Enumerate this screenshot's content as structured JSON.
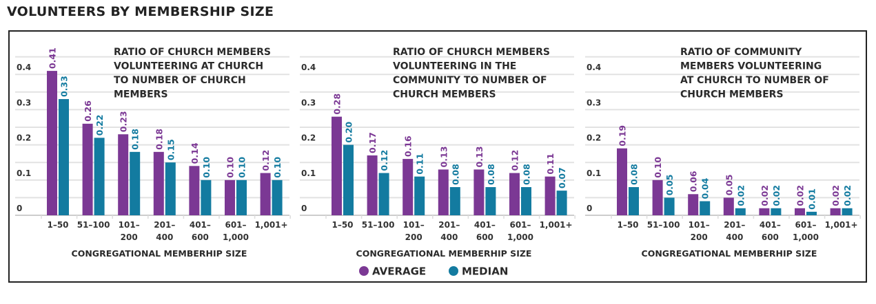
{
  "title": "VOLUNTEERS BY MEMBERSHIP SIZE",
  "colors": {
    "average": "#7b3894",
    "median": "#137ba0"
  },
  "legend": [
    {
      "label": "AVERAGE",
      "color": "#7b3894"
    },
    {
      "label": "MEDIAN",
      "color": "#137ba0"
    }
  ],
  "chart_data": [
    {
      "type": "bar",
      "title_lines": [
        "RATIO OF CHURCH MEMBERS",
        "VOLUNTEERING AT CHURCH",
        "TO NUMBER OF CHURCH",
        "MEMBERS"
      ],
      "xlabel": "CONGREGATIONAL MEMBERHIP SIZE",
      "categories": [
        [
          "1–50"
        ],
        [
          "51–100"
        ],
        [
          "101–",
          "200"
        ],
        [
          "201–",
          "400"
        ],
        [
          "401–",
          "600"
        ],
        [
          "601–",
          "1,000"
        ],
        [
          "1,001+"
        ]
      ],
      "yticks": [
        "0",
        "0.1",
        "0.2",
        "0.3",
        "0.4"
      ],
      "ylim": [
        0,
        0.45
      ],
      "grid": true,
      "series": [
        {
          "name": "AVERAGE",
          "values": [
            0.41,
            0.26,
            0.23,
            0.18,
            0.14,
            0.1,
            0.12
          ],
          "labels": [
            "0.41",
            "0.26",
            "0.23",
            "0.18",
            "0.14",
            "0.10",
            "0.12"
          ]
        },
        {
          "name": "MEDIAN",
          "values": [
            0.33,
            0.22,
            0.18,
            0.15,
            0.1,
            0.1,
            0.1
          ],
          "labels": [
            "0.33",
            "0.22",
            "0.18",
            "0.15",
            "0.10",
            "0.10",
            "0.10"
          ]
        }
      ]
    },
    {
      "type": "bar",
      "title_lines": [
        "RATIO OF CHURCH MEMBERS",
        "VOLUNTEERING IN THE",
        "COMMUNITY TO NUMBER OF",
        "CHURCH MEMBERS"
      ],
      "xlabel": "CONGREGATIONAL MEMBERHIP SIZE",
      "categories": [
        [
          "1–50"
        ],
        [
          "51–100"
        ],
        [
          "101–",
          "200"
        ],
        [
          "201–",
          "400"
        ],
        [
          "401–",
          "600"
        ],
        [
          "601–",
          "1,000"
        ],
        [
          "1,001+"
        ]
      ],
      "yticks": [
        "0",
        "0.1",
        "0.2",
        "0.3",
        "0.4"
      ],
      "ylim": [
        0,
        0.45
      ],
      "grid": true,
      "series": [
        {
          "name": "AVERAGE",
          "values": [
            0.28,
            0.17,
            0.16,
            0.13,
            0.13,
            0.12,
            0.11
          ],
          "labels": [
            "0.28",
            "0.17",
            "0.16",
            "0.13",
            "0.13",
            "0.12",
            "0.11"
          ]
        },
        {
          "name": "MEDIAN",
          "values": [
            0.2,
            0.12,
            0.11,
            0.08,
            0.08,
            0.08,
            0.07
          ],
          "labels": [
            "0.20",
            "0.12",
            "0.11",
            "0.08",
            "0.08",
            "0.08",
            "0.07"
          ]
        }
      ]
    },
    {
      "type": "bar",
      "title_lines": [
        "RATIO OF COMMUNITY",
        "MEMBERS VOLUNTEERING",
        "AT CHURCH TO NUMBER OF",
        "CHURCH MEMBERS"
      ],
      "xlabel": "CONGREGATIONAL MEMBERHIP SIZE",
      "categories": [
        [
          "1–50"
        ],
        [
          "51–100"
        ],
        [
          "101–",
          "200"
        ],
        [
          "201–",
          "400"
        ],
        [
          "401–",
          "600"
        ],
        [
          "601–",
          "1,000"
        ],
        [
          "1,001+"
        ]
      ],
      "yticks": [
        "0",
        "0.1",
        "0.2",
        "0.3",
        "0.4"
      ],
      "ylim": [
        0,
        0.45
      ],
      "grid": true,
      "series": [
        {
          "name": "AVERAGE",
          "values": [
            0.19,
            0.1,
            0.06,
            0.05,
            0.02,
            0.02,
            0.02
          ],
          "labels": [
            "0.19",
            "0.10",
            "0.06",
            "0.05",
            "0.02",
            "0.02",
            "0.02"
          ]
        },
        {
          "name": "MEDIAN",
          "values": [
            0.08,
            0.05,
            0.04,
            0.02,
            0.02,
            0.01,
            0.02
          ],
          "labels": [
            "0.08",
            "0.05",
            "0.04",
            "0.02",
            "0.02",
            "0.01",
            "0.02"
          ]
        }
      ]
    }
  ]
}
